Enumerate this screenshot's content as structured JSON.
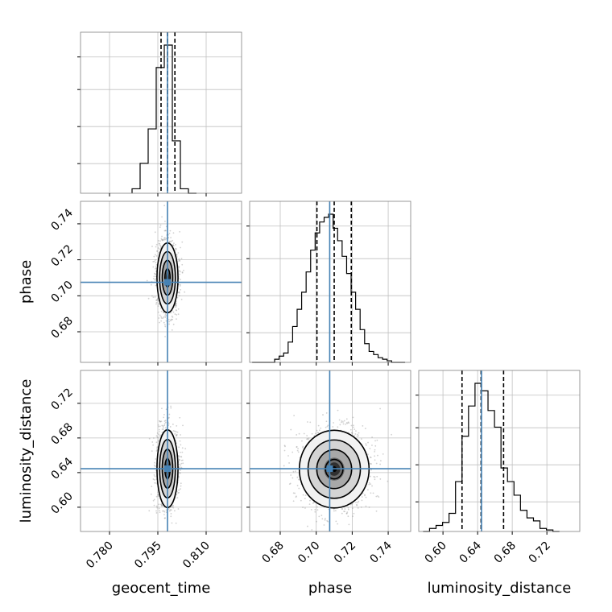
{
  "chart_data": {
    "type": "corner",
    "parameters": [
      "geocent_time",
      "phase",
      "luminosity_distance"
    ],
    "axis_labels": [
      "geocent_time",
      "phase",
      "luminosity_distance"
    ],
    "ranges": {
      "geocent_time": [
        0.771,
        0.821
      ],
      "phase": [
        0.663,
        0.7525
      ],
      "luminosity_distance": [
        0.572,
        0.758
      ]
    },
    "ticks": {
      "geocent_time": [
        "0.780",
        "0.795",
        "0.810"
      ],
      "phase": [
        "0.68",
        "0.70",
        "0.72",
        "0.74"
      ],
      "luminosity_distance": [
        "0.60",
        "0.64",
        "0.68",
        "0.72"
      ]
    },
    "truths": {
      "geocent_time": 0.798,
      "phase": 0.7075,
      "luminosity_distance": 0.6445
    },
    "quantiles": {
      "geocent_time": [
        0.796,
        0.798,
        0.8003
      ],
      "phase": [
        0.7004,
        0.71,
        0.7195
      ],
      "luminosity_distance": [
        0.622,
        0.644,
        0.67
      ]
    },
    "histograms": {
      "geocent_time": {
        "bins": [
          [
            0.787,
            0.7895
          ],
          [
            0.7895,
            0.792
          ],
          [
            0.792,
            0.7945
          ],
          [
            0.7945,
            0.797
          ],
          [
            0.797,
            0.7995
          ],
          [
            0.7995,
            0.802
          ],
          [
            0.802,
            0.8045
          ],
          [
            0.8045,
            0.807
          ]
        ],
        "counts": [
          0.03,
          0.2,
          0.43,
          0.84,
          0.99,
          0.35,
          0.03,
          0.0
        ]
      },
      "phase": {
        "bins": [
          [
            0.6644,
            0.6669
          ],
          [
            0.6669,
            0.6694
          ],
          [
            0.6694,
            0.6719
          ],
          [
            0.6719,
            0.6744
          ],
          [
            0.6744,
            0.6769
          ],
          [
            0.6769,
            0.6794
          ],
          [
            0.6794,
            0.6819
          ],
          [
            0.6819,
            0.6844
          ],
          [
            0.6844,
            0.6869
          ],
          [
            0.6869,
            0.6894
          ],
          [
            0.6894,
            0.6919
          ],
          [
            0.6919,
            0.6944
          ],
          [
            0.6944,
            0.6969
          ],
          [
            0.6969,
            0.6994
          ],
          [
            0.6994,
            0.7019
          ],
          [
            0.7019,
            0.7044
          ],
          [
            0.7044,
            0.7069
          ],
          [
            0.7069,
            0.7094
          ],
          [
            0.7094,
            0.7119
          ],
          [
            0.7119,
            0.7144
          ],
          [
            0.7144,
            0.7169
          ],
          [
            0.7169,
            0.7194
          ],
          [
            0.7194,
            0.7219
          ],
          [
            0.7219,
            0.7244
          ],
          [
            0.7244,
            0.7269
          ],
          [
            0.7269,
            0.7294
          ],
          [
            0.7294,
            0.7319
          ],
          [
            0.7319,
            0.7344
          ],
          [
            0.7344,
            0.7369
          ],
          [
            0.7369,
            0.7394
          ],
          [
            0.7394,
            0.7419
          ],
          [
            0.7419,
            0.7444
          ],
          [
            0.7444,
            0.7469
          ],
          [
            0.7469,
            0.7494
          ]
        ],
        "counts": [
          0.0,
          0.0,
          0.0,
          0.0,
          0.0,
          0.02,
          0.04,
          0.06,
          0.13,
          0.23,
          0.34,
          0.45,
          0.58,
          0.72,
          0.83,
          0.9,
          0.93,
          0.95,
          0.86,
          0.78,
          0.68,
          0.57,
          0.45,
          0.34,
          0.21,
          0.12,
          0.07,
          0.05,
          0.03,
          0.02,
          0.01,
          0.0,
          0.0,
          0.0
        ]
      },
      "luminosity_distance": {
        "bins": [
          [
            0.577,
            0.5845
          ],
          [
            0.5845,
            0.592
          ],
          [
            0.592,
            0.5995
          ],
          [
            0.5995,
            0.607
          ],
          [
            0.607,
            0.6145
          ],
          [
            0.6145,
            0.622
          ],
          [
            0.622,
            0.6295
          ],
          [
            0.6295,
            0.637
          ],
          [
            0.637,
            0.6445
          ],
          [
            0.6445,
            0.652
          ],
          [
            0.652,
            0.6595
          ],
          [
            0.6595,
            0.667
          ],
          [
            0.667,
            0.6745
          ],
          [
            0.6745,
            0.682
          ],
          [
            0.682,
            0.6895
          ],
          [
            0.6895,
            0.697
          ],
          [
            0.697,
            0.7045
          ],
          [
            0.7045,
            0.712
          ],
          [
            0.712,
            0.7195
          ],
          [
            0.7195,
            0.727
          ],
          [
            0.727,
            0.7345
          ]
        ],
        "counts": [
          0.0,
          0.02,
          0.04,
          0.06,
          0.12,
          0.33,
          0.63,
          0.83,
          0.98,
          0.93,
          0.8,
          0.69,
          0.42,
          0.33,
          0.24,
          0.14,
          0.09,
          0.07,
          0.02,
          0.01,
          0.0
        ]
      }
    },
    "posterior_2d": [
      {
        "x": "geocent_time",
        "y": "phase",
        "center": [
          0.798,
          0.71
        ],
        "sigma": [
          0.0016,
          0.0095
        ]
      },
      {
        "x": "geocent_time",
        "y": "luminosity_distance",
        "center": [
          0.798,
          0.6445
        ],
        "sigma": [
          0.0016,
          0.022
        ]
      },
      {
        "x": "phase",
        "y": "luminosity_distance",
        "center": [
          0.71,
          0.644
        ],
        "sigma": [
          0.0095,
          0.022
        ]
      }
    ],
    "contour_levels_sigma": [
      0.5,
      1.0,
      1.5,
      2.0
    ],
    "grid": true,
    "colors": {
      "truth": "#4682b4",
      "hist": "#000000",
      "contour": "#000000",
      "points": "#9a9a9a",
      "grid": "#c0c0c0"
    }
  }
}
